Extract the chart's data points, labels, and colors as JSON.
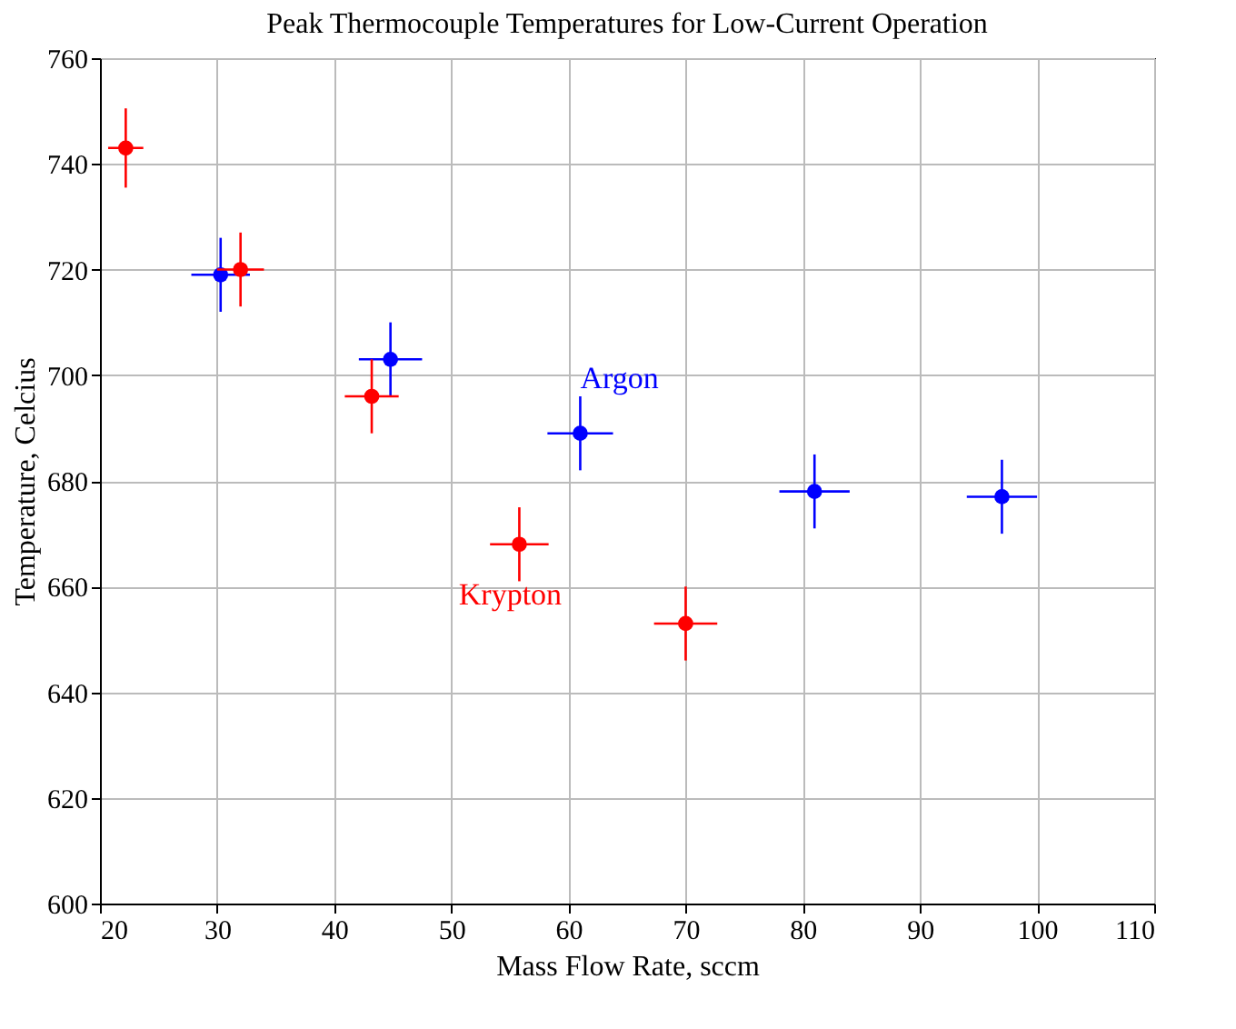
{
  "chart_data": {
    "type": "scatter",
    "title": "Peak Thermocouple Temperatures for Low-Current Operation",
    "xlabel": "Mass Flow Rate, sccm",
    "ylabel": "Temperature, Celcius",
    "xlim": [
      20,
      110
    ],
    "xticks": [
      20,
      30,
      40,
      50,
      60,
      70,
      80,
      90,
      100,
      110
    ],
    "ylim": [
      600,
      760
    ],
    "yticks": [
      600,
      620,
      640,
      660,
      680,
      700,
      720,
      740,
      760
    ],
    "grid": true,
    "legend": false,
    "marker": "circle",
    "series": [
      {
        "name": "Argon",
        "color": "#0000ff",
        "x": [
          30.3,
          44.8,
          61,
          81,
          97
        ],
        "values": [
          719,
          703,
          689,
          678,
          677
        ],
        "errors": [
          7,
          7,
          7,
          7,
          7
        ],
        "xerrors": [
          2.5,
          2.7,
          2.8,
          3,
          3
        ]
      },
      {
        "name": "Krypton",
        "color": "#ff0000",
        "x": [
          22.2,
          32,
          43.2,
          55.8,
          70
        ],
        "values": [
          743,
          720,
          696,
          668,
          653
        ],
        "errors": [
          7.5,
          7,
          7,
          7,
          7
        ],
        "xerrors": [
          1.5,
          2,
          2.3,
          2.5,
          2.7
        ]
      }
    ]
  }
}
